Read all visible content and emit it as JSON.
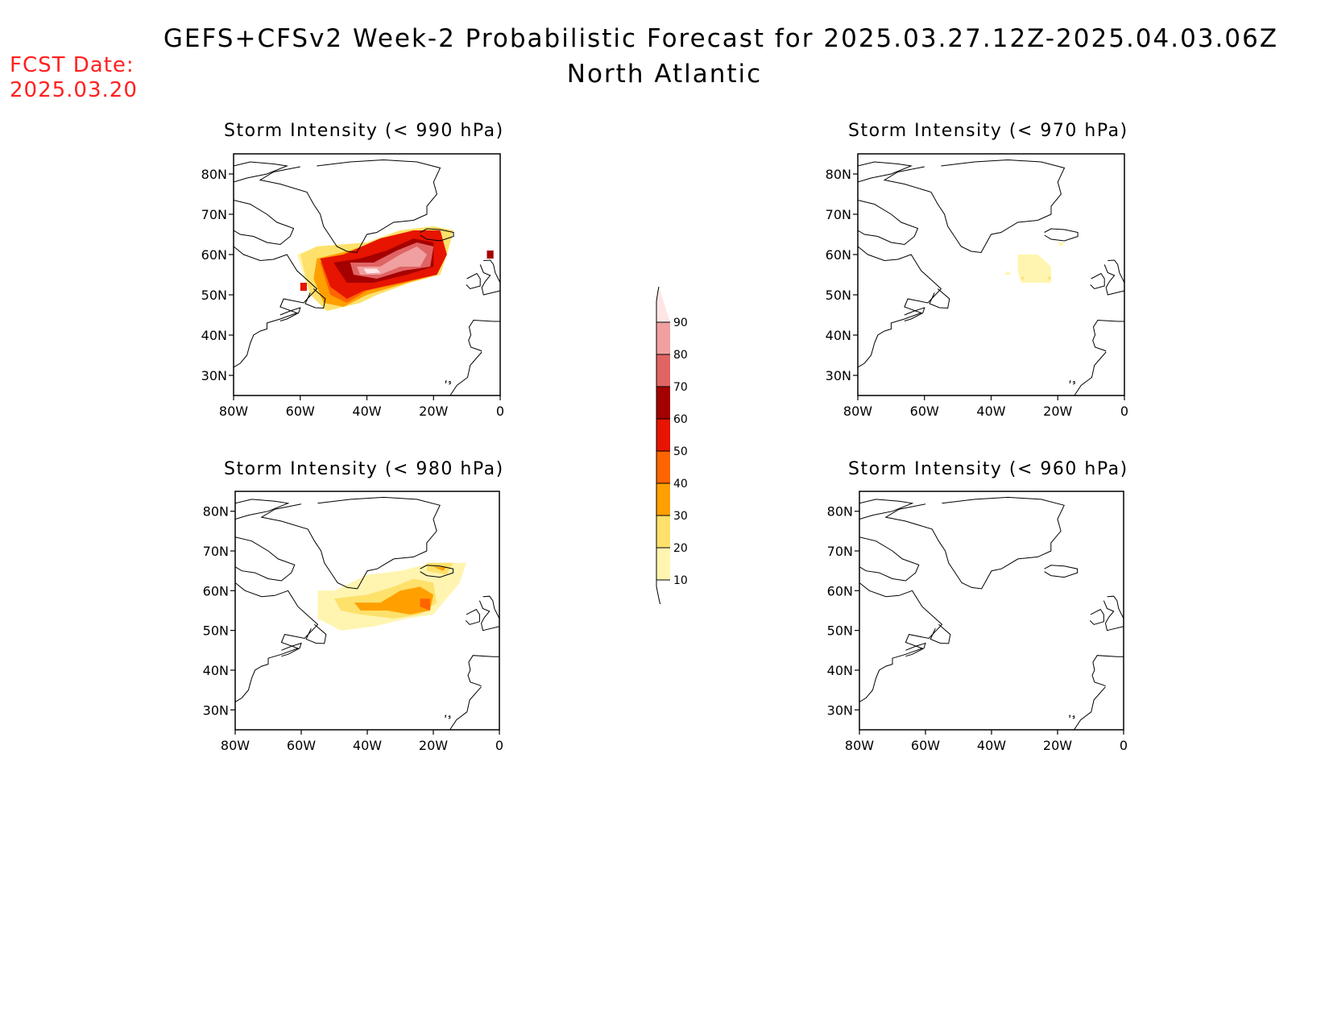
{
  "header": {
    "title": "GEFS+CFSv2 Week-2 Probabilistic Forecast for 2025.03.27.12Z-2025.04.03.06Z",
    "subtitle": "North Atlantic"
  },
  "forecast": {
    "label": "FCST Date:",
    "date": "2025.03.20"
  },
  "axes": {
    "lat_labels": [
      "30N",
      "40N",
      "50N",
      "60N",
      "70N",
      "80N"
    ],
    "lat_values": [
      30,
      40,
      50,
      60,
      70,
      80
    ],
    "lon_labels": [
      "80W",
      "60W",
      "40W",
      "20W",
      "0"
    ],
    "lon_values": [
      -80,
      -60,
      -40,
      -20,
      0
    ],
    "lat_range": [
      25,
      85
    ],
    "lon_range": [
      -80,
      0
    ]
  },
  "colorbar": {
    "levels": [
      "10",
      "20",
      "30",
      "40",
      "50",
      "60",
      "70",
      "80",
      "90"
    ],
    "colors": [
      "#fff5b0",
      "#fde16b",
      "#ffa000",
      "#ff6400",
      "#e61400",
      "#a50000",
      "#e06464",
      "#f0a0a0",
      "#ffe6e6"
    ]
  },
  "panels": [
    {
      "id": "990",
      "title": "Storm Intensity (< 990 hPa)",
      "prob_areas": [
        {
          "level": 10,
          "points": [
            [
              -61,
              60
            ],
            [
              -55,
              62
            ],
            [
              -40,
              63
            ],
            [
              -30,
              66
            ],
            [
              -20,
              67
            ],
            [
              -14,
              66
            ],
            [
              -16,
              60
            ],
            [
              -18,
              55
            ],
            [
              -27,
              53
            ],
            [
              -37,
              50
            ],
            [
              -42,
              48
            ],
            [
              -52,
              46
            ],
            [
              -57,
              50
            ]
          ]
        },
        {
          "level": 20,
          "points": [
            [
              -60,
              60
            ],
            [
              -55,
              62
            ],
            [
              -40,
              63
            ],
            [
              -30,
              66
            ],
            [
              -20,
              67
            ],
            [
              -14,
              66
            ],
            [
              -16,
              60
            ],
            [
              -18,
              55
            ],
            [
              -27,
              53
            ],
            [
              -37,
              50
            ],
            [
              -42,
              48
            ],
            [
              -52,
              46
            ],
            [
              -57,
              50
            ]
          ]
        },
        {
          "level": 30,
          "points": [
            [
              -55,
              59
            ],
            [
              -45,
              61
            ],
            [
              -35,
              64
            ],
            [
              -25,
              66
            ],
            [
              -18,
              66
            ],
            [
              -16,
              60
            ],
            [
              -19,
              55
            ],
            [
              -28,
              53
            ],
            [
              -40,
              50
            ],
            [
              -47,
              47
            ],
            [
              -53,
              48
            ],
            [
              -56,
              54
            ]
          ]
        },
        {
          "level": 40,
          "points": [
            [
              -54,
              58
            ],
            [
              -45,
              60
            ],
            [
              -35,
              64
            ],
            [
              -25,
              66
            ],
            [
              -18,
              66
            ],
            [
              -16,
              60
            ],
            [
              -19,
              55
            ],
            [
              -29,
              53
            ],
            [
              -40,
              51
            ],
            [
              -46,
              48
            ],
            [
              -51,
              50
            ]
          ]
        },
        {
          "level": 50,
          "points": [
            [
              -54,
              59
            ],
            [
              -47,
              60
            ],
            [
              -36,
              64
            ],
            [
              -26,
              66
            ],
            [
              -18,
              66
            ],
            [
              -16,
              60
            ],
            [
              -19,
              55
            ],
            [
              -30,
              53
            ],
            [
              -41,
              51
            ],
            [
              -46,
              49
            ],
            [
              -51,
              52
            ]
          ]
        },
        {
          "level": 60,
          "points": [
            [
              -50,
              58
            ],
            [
              -42,
              59
            ],
            [
              -34,
              61
            ],
            [
              -26,
              64
            ],
            [
              -20,
              63
            ],
            [
              -20,
              57
            ],
            [
              -28,
              55
            ],
            [
              -38,
              53
            ],
            [
              -46,
              53
            ]
          ]
        },
        {
          "level": 70,
          "points": [
            [
              -45,
              58
            ],
            [
              -38,
              58
            ],
            [
              -31,
              61
            ],
            [
              -25,
              63
            ],
            [
              -20,
              62
            ],
            [
              -21,
              57
            ],
            [
              -29,
              56
            ],
            [
              -37,
              54
            ],
            [
              -44,
              55
            ]
          ]
        },
        {
          "level": 80,
          "points": [
            [
              -43,
              57
            ],
            [
              -36,
              57
            ],
            [
              -30,
              60
            ],
            [
              -25,
              62
            ],
            [
              -22,
              60
            ],
            [
              -24,
              57
            ],
            [
              -30,
              57
            ],
            [
              -36,
              55
            ],
            [
              -42,
              55
            ]
          ]
        },
        {
          "level": 90,
          "points": [
            [
              -41,
              56.5
            ],
            [
              -37,
              56.5
            ],
            [
              -36,
              55.5
            ],
            [
              -40,
              55.3
            ]
          ]
        },
        {
          "level": 50,
          "points": [
            [
              -60,
              53
            ],
            [
              -58,
              53
            ],
            [
              -58,
              51
            ],
            [
              -60,
              51
            ]
          ]
        },
        {
          "level": 60,
          "points": [
            [
              -4,
              61
            ],
            [
              -2,
              61
            ],
            [
              -2,
              59
            ],
            [
              -4,
              59
            ]
          ]
        }
      ]
    },
    {
      "id": "970",
      "title": "Storm Intensity (< 970 hPa)",
      "prob_areas": [
        {
          "level": 10,
          "points": [
            [
              -32,
              60
            ],
            [
              -26,
              60
            ],
            [
              -22,
              57
            ],
            [
              -22,
              53
            ],
            [
              -31,
              53
            ],
            [
              -32,
              56
            ]
          ]
        },
        {
          "level": 20,
          "points": [
            [
              -31,
              54.5
            ],
            [
              -30,
              54.5
            ],
            [
              -30.5,
              53.5
            ]
          ]
        },
        {
          "level": 20,
          "points": [
            [
              -23,
              54.5
            ],
            [
              -22,
              54.5
            ],
            [
              -22.5,
              53.5
            ]
          ]
        },
        {
          "level": 10,
          "points": [
            [
              -36,
              55
            ],
            [
              -35,
              56
            ],
            [
              -34,
              55
            ]
          ]
        },
        {
          "level": 10,
          "points": [
            [
              -20,
              63
            ],
            [
              -18,
              63
            ],
            [
              -19,
              62
            ]
          ]
        }
      ]
    },
    {
      "id": "980",
      "title": "Storm Intensity (< 980 hPa)",
      "prob_areas": [
        {
          "level": 10,
          "points": [
            [
              -55,
              60
            ],
            [
              -50,
              60
            ],
            [
              -45,
              62
            ],
            [
              -40,
              64
            ],
            [
              -30,
              65
            ],
            [
              -20,
              67
            ],
            [
              -10,
              67
            ],
            [
              -12,
              62
            ],
            [
              -16,
              58
            ],
            [
              -20,
              54
            ],
            [
              -28,
              53
            ],
            [
              -38,
              51
            ],
            [
              -48,
              50
            ],
            [
              -55,
              53
            ]
          ]
        },
        {
          "level": 20,
          "points": [
            [
              -50,
              58
            ],
            [
              -40,
              59
            ],
            [
              -32,
              61
            ],
            [
              -26,
              63
            ],
            [
              -20,
              62
            ],
            [
              -19,
              57
            ],
            [
              -24,
              54
            ],
            [
              -32,
              53
            ],
            [
              -42,
              54
            ],
            [
              -48,
              55
            ]
          ]
        },
        {
          "level": 30,
          "points": [
            [
              -44,
              57
            ],
            [
              -36,
              57
            ],
            [
              -30,
              60
            ],
            [
              -24,
              61
            ],
            [
              -20,
              59
            ],
            [
              -21,
              55
            ],
            [
              -27,
              54
            ],
            [
              -34,
              55
            ],
            [
              -42,
              55
            ]
          ]
        },
        {
          "level": 40,
          "points": [
            [
              -24,
              58
            ],
            [
              -21,
              58
            ],
            [
              -21,
              55
            ],
            [
              -24,
              56
            ]
          ]
        },
        {
          "level": 20,
          "points": [
            [
              -22,
              67
            ],
            [
              -14,
              67
            ],
            [
              -16,
              64
            ],
            [
              -22,
              65
            ]
          ]
        },
        {
          "level": 30,
          "points": [
            [
              -20,
              66
            ],
            [
              -16,
              66
            ],
            [
              -17,
              65
            ]
          ]
        }
      ]
    },
    {
      "id": "960",
      "title": "Storm Intensity (< 960 hPa)",
      "prob_areas": []
    }
  ]
}
